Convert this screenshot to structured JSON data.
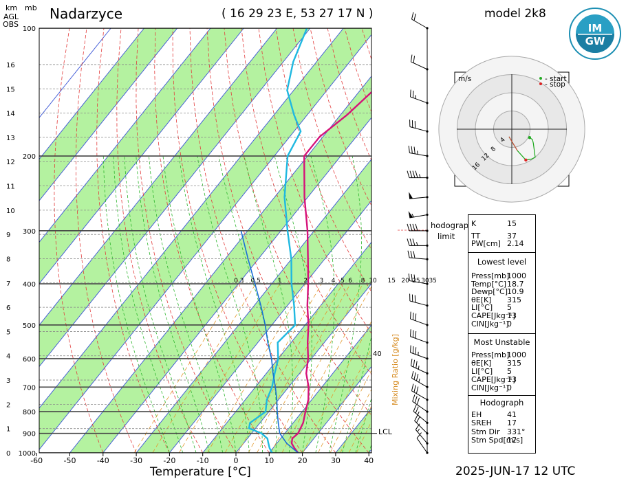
{
  "header": {
    "station": "Nadarzyce",
    "coordinates": "( 16 29 23  E, 53 27 17  N )",
    "model": "model 2k8",
    "date": "2025-JUN-17  12 UTC",
    "axis_km": "km",
    "axis_agl": "AGL",
    "axis_obs": "OBS",
    "axis_mb": "mb"
  },
  "logo": {
    "text": "IMGW",
    "ring_text": "INSTYTUT METEOROLOGII I GOSPODARKI WODNEJ"
  },
  "hodograph_limit": {
    "line1": "hodograph",
    "line2": "limit"
  },
  "hodograph": {
    "units": "m/s",
    "legend_start": "- start",
    "legend_stop": "- stop",
    "ring_labels": [
      "4",
      "8",
      "12",
      "16"
    ],
    "start_color": "#22aa22",
    "stop_color": "#dd2222",
    "points_uv": [
      [
        3.8,
        -1.8
      ],
      [
        4.4,
        -2.2
      ],
      [
        4.6,
        -3.0
      ],
      [
        5.0,
        -6.0
      ],
      [
        4.2,
        -6.4
      ],
      [
        3.0,
        -6.6
      ],
      [
        1.2,
        -4.6
      ],
      [
        -0.6,
        -1.6
      ]
    ]
  },
  "indices": {
    "K_label": "K",
    "K": "15",
    "TT_label": "TT",
    "TT": "37",
    "PW_label": "PW[cm]",
    "PW": "2.14",
    "lowest_title": "Lowest level",
    "lowest": [
      {
        "label": "Press[mb]",
        "value": "1000"
      },
      {
        "label": "Temp[°C]",
        "value": "18.7"
      },
      {
        "label": "Dewp[°C]",
        "value": "10.9"
      },
      {
        "label": "θE[K]",
        "value": "315"
      },
      {
        "label": "LI[°C]",
        "value": "5"
      },
      {
        "label": "CAPE[Jkg⁻¹]",
        "value": "13"
      },
      {
        "label": "CIN[Jkg⁻¹]",
        "value": "0"
      }
    ],
    "mu_title": "Most Unstable",
    "mu": [
      {
        "label": "Press[mb]",
        "value": "1000"
      },
      {
        "label": "θE[K]",
        "value": "315"
      },
      {
        "label": "LI[°C]",
        "value": "5"
      },
      {
        "label": "CAPE[Jkg⁻¹]",
        "value": "13"
      },
      {
        "label": "CIN[Jkg⁻¹]",
        "value": "0"
      }
    ],
    "hodo_title": "Hodograph",
    "hodo": [
      {
        "label": "EH",
        "value": "41"
      },
      {
        "label": "SREH",
        "value": "17"
      },
      {
        "label": "Stm Dir",
        "value": "331°"
      },
      {
        "label": "Stm Spd[m/s]",
        "value": "12"
      }
    ]
  },
  "chart_data": {
    "type": "line",
    "title": "",
    "xlabel": "Temperature [°C]",
    "ylabel": "",
    "x_ticks": [
      -60,
      -50,
      -40,
      -30,
      -20,
      -10,
      0,
      10,
      20,
      30,
      40
    ],
    "xlim": [
      -60,
      40
    ],
    "pressure_labels": [
      100,
      200,
      300,
      400,
      500,
      600,
      700,
      800,
      900,
      1000
    ],
    "height_labels_km": [
      0,
      1,
      2,
      3,
      4,
      5,
      6,
      7,
      8,
      9,
      10,
      11,
      12,
      13,
      14,
      15,
      16
    ],
    "mixing_ratio_title": "Mixing Ratio [g/kg]",
    "mixing_ratio_labels": [
      "0.3",
      "0.5",
      "1",
      "2",
      "3",
      "4",
      "5",
      "6",
      "8",
      "10",
      "15",
      "20",
      "25",
      "30",
      "35"
    ],
    "mixing_ratio_40": "40",
    "lcl_label": "LCL",
    "lcl_pressure": 900,
    "colors": {
      "temperature": "#d6127a",
      "dewpoint": "#1fb8e0",
      "parcel": "#1a6fd6",
      "band": "#b4f2a0"
    },
    "series": [
      {
        "name": "temperature",
        "points": [
          [
            1000,
            18.7
          ],
          [
            975,
            16.5
          ],
          [
            950,
            14.5
          ],
          [
            925,
            13.5
          ],
          [
            900,
            14.0
          ],
          [
            850,
            13.0
          ],
          [
            800,
            11.0
          ],
          [
            750,
            9.0
          ],
          [
            700,
            6.0
          ],
          [
            650,
            2.0
          ],
          [
            600,
            -1.0
          ],
          [
            550,
            -5.0
          ],
          [
            500,
            -9.0
          ],
          [
            450,
            -14.0
          ],
          [
            400,
            -19.0
          ],
          [
            350,
            -25.0
          ],
          [
            300,
            -32.0
          ],
          [
            250,
            -41.0
          ],
          [
            200,
            -51.0
          ],
          [
            180,
            -51.0
          ],
          [
            160,
            -48.0
          ],
          [
            140,
            -46.0
          ],
          [
            120,
            -47.0
          ],
          [
            100,
            -50.0
          ]
        ]
      },
      {
        "name": "dewpoint",
        "points": [
          [
            1000,
            10.9
          ],
          [
            975,
            9.0
          ],
          [
            950,
            7.5
          ],
          [
            925,
            6.0
          ],
          [
            900,
            3.0
          ],
          [
            875,
            -2.0
          ],
          [
            850,
            -3.0
          ],
          [
            800,
            -1.0
          ],
          [
            750,
            -3.5
          ],
          [
            700,
            -5.0
          ],
          [
            650,
            -7.5
          ],
          [
            600,
            -10.0
          ],
          [
            550,
            -14.0
          ],
          [
            500,
            -13.0
          ],
          [
            450,
            -18.0
          ],
          [
            400,
            -24.0
          ],
          [
            350,
            -30.0
          ],
          [
            300,
            -38.0
          ],
          [
            250,
            -47.0
          ],
          [
            200,
            -56.0
          ],
          [
            175,
            -58.0
          ],
          [
            160,
            -64.0
          ],
          [
            140,
            -72.0
          ],
          [
            120,
            -77.0
          ],
          [
            100,
            -81.0
          ]
        ]
      },
      {
        "name": "parcel",
        "points": [
          [
            1000,
            18.7
          ],
          [
            950,
            13.0
          ],
          [
            900,
            8.5
          ],
          [
            850,
            5.5
          ],
          [
            800,
            2.5
          ],
          [
            750,
            -0.5
          ],
          [
            700,
            -4.0
          ],
          [
            650,
            -8.0
          ],
          [
            600,
            -12.0
          ],
          [
            550,
            -17.0
          ],
          [
            500,
            -22.0
          ],
          [
            450,
            -28.0
          ],
          [
            400,
            -35.0
          ],
          [
            350,
            -43.0
          ],
          [
            300,
            -52.0
          ]
        ]
      }
    ],
    "winds": [
      {
        "p": 100,
        "dir": 300,
        "spd": 20
      },
      {
        "p": 125,
        "dir": 295,
        "spd": 20
      },
      {
        "p": 150,
        "dir": 290,
        "spd": 25
      },
      {
        "p": 175,
        "dir": 285,
        "spd": 30
      },
      {
        "p": 200,
        "dir": 280,
        "spd": 35
      },
      {
        "p": 225,
        "dir": 270,
        "spd": 45
      },
      {
        "p": 250,
        "dir": 265,
        "spd": 50
      },
      {
        "p": 275,
        "dir": 260,
        "spd": 55
      },
      {
        "p": 300,
        "dir": 270,
        "spd": 40
      },
      {
        "p": 325,
        "dir": 270,
        "spd": 35
      },
      {
        "p": 350,
        "dir": 275,
        "spd": 30
      },
      {
        "p": 400,
        "dir": 280,
        "spd": 30
      },
      {
        "p": 450,
        "dir": 285,
        "spd": 30
      },
      {
        "p": 500,
        "dir": 290,
        "spd": 30
      },
      {
        "p": 550,
        "dir": 290,
        "spd": 30
      },
      {
        "p": 600,
        "dir": 290,
        "spd": 35
      },
      {
        "p": 650,
        "dir": 295,
        "spd": 35
      },
      {
        "p": 700,
        "dir": 300,
        "spd": 35
      },
      {
        "p": 750,
        "dir": 300,
        "spd": 30
      },
      {
        "p": 800,
        "dir": 305,
        "spd": 30
      },
      {
        "p": 850,
        "dir": 310,
        "spd": 25
      },
      {
        "p": 900,
        "dir": 315,
        "spd": 20
      },
      {
        "p": 950,
        "dir": 320,
        "spd": 15
      },
      {
        "p": 1000,
        "dir": 325,
        "spd": 10
      }
    ]
  }
}
